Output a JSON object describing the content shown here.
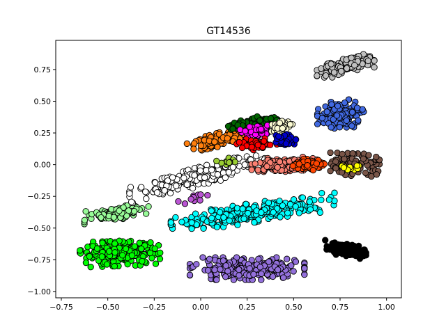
{
  "chart_data": {
    "type": "scatter",
    "title": "GT14536",
    "xlabel": "",
    "ylabel": "",
    "xlim": [
      -0.78,
      1.08
    ],
    "ylim": [
      -1.05,
      0.98
    ],
    "xticks": [
      -0.75,
      -0.5,
      -0.25,
      0.0,
      0.25,
      0.5,
      0.75,
      1.0
    ],
    "xtick_labels": [
      "−0.75",
      "−0.50",
      "−0.25",
      "0.00",
      "0.25",
      "0.50",
      "0.75",
      "1.00"
    ],
    "yticks": [
      -1.0,
      -0.75,
      -0.5,
      -0.25,
      0.0,
      0.25,
      0.5,
      0.75
    ],
    "ytick_labels": [
      "−1.00",
      "−0.75",
      "−0.50",
      "−0.25",
      "0.00",
      "0.25",
      "0.50",
      "0.75"
    ],
    "grid": false,
    "legend": "none",
    "marker_edge_color": "#000000",
    "clusters": [
      {
        "color": "#c0c0c0",
        "center": [
          0.78,
          0.78
        ],
        "extent": [
          0.14,
          0.06
        ],
        "tilt": 0.35,
        "count": 140
      },
      {
        "color": "#4169e1",
        "center": [
          0.76,
          0.4
        ],
        "extent": [
          0.12,
          0.1
        ],
        "tilt": 0.08,
        "count": 150
      },
      {
        "color": "#000000",
        "center": [
          0.78,
          -0.67
        ],
        "extent": [
          0.1,
          0.05
        ],
        "tilt": -0.3,
        "count": 130
      },
      {
        "color": "#9370db",
        "center": [
          0.25,
          -0.82
        ],
        "extent": [
          0.28,
          0.08
        ],
        "tilt": 0.0,
        "count": 260
      },
      {
        "color": "#00ff00",
        "center": [
          -0.43,
          -0.7
        ],
        "extent": [
          0.2,
          0.09
        ],
        "tilt": 0.05,
        "count": 240
      },
      {
        "color": "#98fb98",
        "center": [
          -0.45,
          -0.38
        ],
        "extent": [
          0.16,
          0.05
        ],
        "tilt": 0.25,
        "count": 110
      },
      {
        "color": "#00ffff",
        "center": [
          0.28,
          -0.38
        ],
        "extent": [
          0.4,
          0.07
        ],
        "tilt": 0.22,
        "count": 280
      },
      {
        "color": "#ffffff",
        "center": [
          -0.02,
          -0.1
        ],
        "extent": [
          0.33,
          0.07
        ],
        "tilt": 0.38,
        "count": 240
      },
      {
        "color": "#ff7f0e",
        "center": [
          0.08,
          0.19
        ],
        "extent": [
          0.14,
          0.05
        ],
        "tilt": 0.4,
        "count": 110
      },
      {
        "color": "#006400",
        "center": [
          0.28,
          0.33
        ],
        "extent": [
          0.12,
          0.04
        ],
        "tilt": 0.25,
        "count": 90
      },
      {
        "color": "#ff00ff",
        "center": [
          0.3,
          0.26
        ],
        "extent": [
          0.08,
          0.04
        ],
        "tilt": 0.1,
        "count": 50
      },
      {
        "color": "#ff0000",
        "center": [
          0.3,
          0.16
        ],
        "extent": [
          0.1,
          0.04
        ],
        "tilt": 0.05,
        "count": 45
      },
      {
        "color": "#fafad2",
        "center": [
          0.44,
          0.3
        ],
        "extent": [
          0.06,
          0.04
        ],
        "tilt": 0.3,
        "count": 50
      },
      {
        "color": "#0000cd",
        "center": [
          0.46,
          0.2
        ],
        "extent": [
          0.05,
          0.05
        ],
        "tilt": 0.0,
        "count": 40
      },
      {
        "color": "#fa8072",
        "center": [
          0.45,
          0.0
        ],
        "extent": [
          0.16,
          0.05
        ],
        "tilt": 0.05,
        "count": 200
      },
      {
        "color": "#ff4500",
        "center": [
          0.58,
          0.0
        ],
        "extent": [
          0.08,
          0.04
        ],
        "tilt": 0.0,
        "count": 90
      },
      {
        "color": "#795548",
        "center": [
          0.83,
          0.0
        ],
        "extent": [
          0.12,
          0.08
        ],
        "tilt": -0.05,
        "count": 130
      },
      {
        "color": "#ffff00",
        "center": [
          0.8,
          -0.02
        ],
        "extent": [
          0.06,
          0.03
        ],
        "tilt": 0.0,
        "count": 12
      },
      {
        "color": "#9acd32",
        "center": [
          0.14,
          0.02
        ],
        "extent": [
          0.05,
          0.03
        ],
        "tilt": 0.0,
        "count": 10
      },
      {
        "color": "#ba55d3",
        "center": [
          -0.05,
          -0.26
        ],
        "extent": [
          0.1,
          0.04
        ],
        "tilt": 0.1,
        "count": 10
      }
    ]
  }
}
